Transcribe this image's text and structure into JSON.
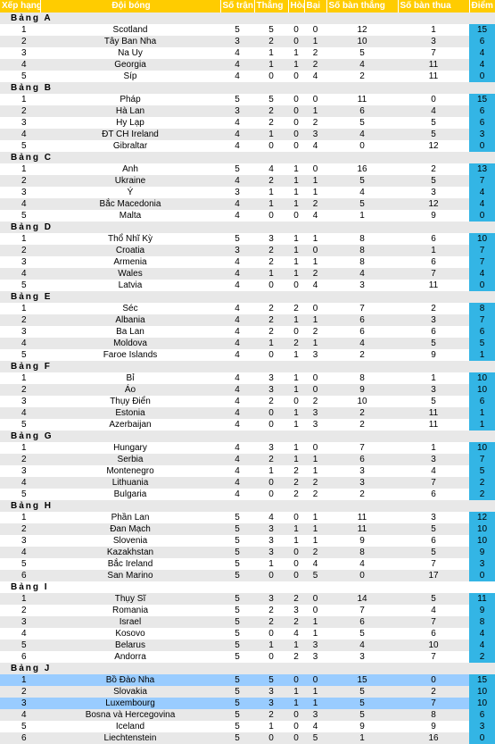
{
  "header": {
    "rank": "Xếp hạng",
    "team": "Đội bóng",
    "played": "Số trận",
    "won": "Thắng",
    "drawn": "Hòa",
    "lost": "Bại",
    "goals_for": "Số bàn thắng",
    "goals_against": "Số bàn thua",
    "points": "Điểm"
  },
  "groups": [
    {
      "label": "Bảng A",
      "rows": [
        [
          "1",
          "Scotland",
          "5",
          "5",
          "0",
          "0",
          "12",
          "1",
          "15"
        ],
        [
          "2",
          "Tây Ban Nha",
          "3",
          "2",
          "0",
          "1",
          "10",
          "3",
          "6"
        ],
        [
          "3",
          "Na Uy",
          "4",
          "1",
          "1",
          "2",
          "5",
          "7",
          "4"
        ],
        [
          "4",
          "Georgia",
          "4",
          "1",
          "1",
          "2",
          "4",
          "11",
          "4"
        ],
        [
          "5",
          "Síp",
          "4",
          "0",
          "0",
          "4",
          "2",
          "11",
          "0"
        ]
      ]
    },
    {
      "label": "Bảng B",
      "rows": [
        [
          "1",
          "Pháp",
          "5",
          "5",
          "0",
          "0",
          "11",
          "0",
          "15"
        ],
        [
          "2",
          "Hà Lan",
          "3",
          "2",
          "0",
          "1",
          "6",
          "4",
          "6"
        ],
        [
          "3",
          "Hy Lạp",
          "4",
          "2",
          "0",
          "2",
          "5",
          "5",
          "6"
        ],
        [
          "4",
          "ĐT CH Ireland",
          "4",
          "1",
          "0",
          "3",
          "4",
          "5",
          "3"
        ],
        [
          "5",
          "Gibraltar",
          "4",
          "0",
          "0",
          "4",
          "0",
          "12",
          "0"
        ]
      ]
    },
    {
      "label": "Bảng C",
      "rows": [
        [
          "1",
          "Anh",
          "5",
          "4",
          "1",
          "0",
          "16",
          "2",
          "13"
        ],
        [
          "2",
          "Ukraine",
          "4",
          "2",
          "1",
          "1",
          "5",
          "5",
          "7"
        ],
        [
          "3",
          "Ý",
          "3",
          "1",
          "1",
          "1",
          "4",
          "3",
          "4"
        ],
        [
          "4",
          "Bắc Macedonia",
          "4",
          "1",
          "1",
          "2",
          "5",
          "12",
          "4"
        ],
        [
          "5",
          "Malta",
          "4",
          "0",
          "0",
          "4",
          "1",
          "9",
          "0"
        ]
      ]
    },
    {
      "label": "Bảng D",
      "rows": [
        [
          "1",
          "Thổ Nhĩ Kỳ",
          "5",
          "3",
          "1",
          "1",
          "8",
          "6",
          "10"
        ],
        [
          "2",
          "Croatia",
          "3",
          "2",
          "1",
          "0",
          "8",
          "1",
          "7"
        ],
        [
          "3",
          "Armenia",
          "4",
          "2",
          "1",
          "1",
          "8",
          "6",
          "7"
        ],
        [
          "4",
          "Wales",
          "4",
          "1",
          "1",
          "2",
          "4",
          "7",
          "4"
        ],
        [
          "5",
          "Latvia",
          "4",
          "0",
          "0",
          "4",
          "3",
          "11",
          "0"
        ]
      ]
    },
    {
      "label": "Bảng E",
      "rows": [
        [
          "1",
          "Séc",
          "4",
          "2",
          "2",
          "0",
          "7",
          "2",
          "8"
        ],
        [
          "2",
          "Albania",
          "4",
          "2",
          "1",
          "1",
          "6",
          "3",
          "7"
        ],
        [
          "3",
          "Ba Lan",
          "4",
          "2",
          "0",
          "2",
          "6",
          "6",
          "6"
        ],
        [
          "4",
          "Moldova",
          "4",
          "1",
          "2",
          "1",
          "4",
          "5",
          "5"
        ],
        [
          "5",
          "Faroe Islands",
          "4",
          "0",
          "1",
          "3",
          "2",
          "9",
          "1"
        ]
      ]
    },
    {
      "label": "Bảng F",
      "rows": [
        [
          "1",
          "Bỉ",
          "4",
          "3",
          "1",
          "0",
          "8",
          "1",
          "10"
        ],
        [
          "2",
          "Áo",
          "4",
          "3",
          "1",
          "0",
          "9",
          "3",
          "10"
        ],
        [
          "3",
          "Thụy Điển",
          "4",
          "2",
          "0",
          "2",
          "10",
          "5",
          "6"
        ],
        [
          "4",
          "Estonia",
          "4",
          "0",
          "1",
          "3",
          "2",
          "11",
          "1"
        ],
        [
          "5",
          "Azerbaijan",
          "4",
          "0",
          "1",
          "3",
          "2",
          "11",
          "1"
        ]
      ]
    },
    {
      "label": "Bảng G",
      "rows": [
        [
          "1",
          "Hungary",
          "4",
          "3",
          "1",
          "0",
          "7",
          "1",
          "10"
        ],
        [
          "2",
          "Serbia",
          "4",
          "2",
          "1",
          "1",
          "6",
          "3",
          "7"
        ],
        [
          "3",
          "Montenegro",
          "4",
          "1",
          "2",
          "1",
          "3",
          "4",
          "5"
        ],
        [
          "4",
          "Lithuania",
          "4",
          "0",
          "2",
          "2",
          "3",
          "7",
          "2"
        ],
        [
          "5",
          "Bulgaria",
          "4",
          "0",
          "2",
          "2",
          "2",
          "6",
          "2"
        ]
      ]
    },
    {
      "label": "Bảng H",
      "rows": [
        [
          "1",
          "Phần Lan",
          "5",
          "4",
          "0",
          "1",
          "11",
          "3",
          "12"
        ],
        [
          "2",
          "Đan Mạch",
          "5",
          "3",
          "1",
          "1",
          "11",
          "5",
          "10"
        ],
        [
          "3",
          "Slovenia",
          "5",
          "3",
          "1",
          "1",
          "9",
          "6",
          "10"
        ],
        [
          "4",
          "Kazakhstan",
          "5",
          "3",
          "0",
          "2",
          "8",
          "5",
          "9"
        ],
        [
          "5",
          "Bắc Ireland",
          "5",
          "1",
          "0",
          "4",
          "4",
          "7",
          "3"
        ],
        [
          "6",
          "San Marino",
          "5",
          "0",
          "0",
          "5",
          "0",
          "17",
          "0"
        ]
      ]
    },
    {
      "label": "Bảng I",
      "rows": [
        [
          "1",
          "Thụy Sĩ",
          "5",
          "3",
          "2",
          "0",
          "14",
          "5",
          "11"
        ],
        [
          "2",
          "Romania",
          "5",
          "2",
          "3",
          "0",
          "7",
          "4",
          "9"
        ],
        [
          "3",
          "Israel",
          "5",
          "2",
          "2",
          "1",
          "6",
          "7",
          "8"
        ],
        [
          "4",
          "Kosovo",
          "5",
          "0",
          "4",
          "1",
          "5",
          "6",
          "4"
        ],
        [
          "5",
          "Belarus",
          "5",
          "1",
          "1",
          "3",
          "4",
          "10",
          "4"
        ],
        [
          "6",
          "Andorra",
          "5",
          "0",
          "2",
          "3",
          "3",
          "7",
          "2"
        ]
      ]
    },
    {
      "label": "Bảng J",
      "rows": [
        [
          "1",
          "Bồ Đào Nha",
          "5",
          "5",
          "0",
          "0",
          "15",
          "0",
          "15"
        ],
        [
          "2",
          "Slovakia",
          "5",
          "3",
          "1",
          "1",
          "5",
          "2",
          "10"
        ],
        [
          "3",
          "Luxembourg",
          "5",
          "3",
          "1",
          "1",
          "5",
          "7",
          "10"
        ],
        [
          "4",
          "Bosna và Hercegovina",
          "5",
          "2",
          "0",
          "3",
          "5",
          "8",
          "6"
        ],
        [
          "5",
          "Iceland",
          "5",
          "1",
          "0",
          "4",
          "9",
          "9",
          "3"
        ],
        [
          "6",
          "Liechtenstein",
          "5",
          "0",
          "0",
          "5",
          "1",
          "16",
          "0"
        ]
      ]
    }
  ],
  "highlight": [
    [
      9,
      0
    ],
    [
      9,
      2
    ]
  ],
  "colors": {
    "header_bg": "#ffcc00",
    "points_bg": "#33b5e5",
    "highlight_bg": "#99ccff",
    "shade_bg": "#e8e8e8"
  }
}
